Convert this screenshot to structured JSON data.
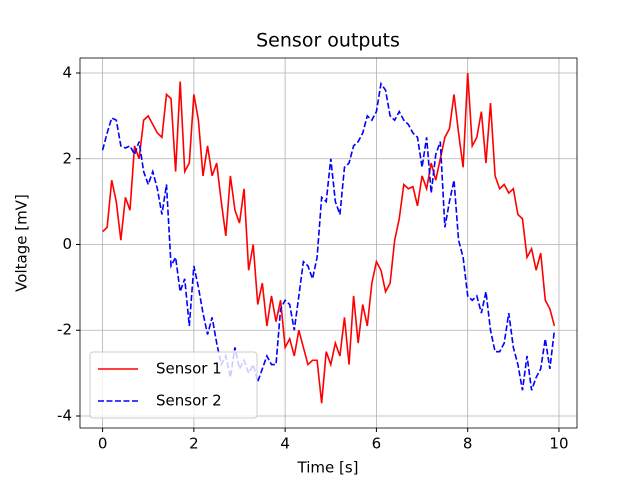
{
  "chart_data": {
    "type": "line",
    "title": "Sensor outputs",
    "xlabel": "Time [s]",
    "ylabel": "Voltage [mV]",
    "x": [
      0,
      0.1,
      0.2,
      0.3,
      0.4,
      0.5,
      0.6,
      0.7,
      0.8,
      0.9,
      1,
      1.1,
      1.2,
      1.3,
      1.4,
      1.5,
      1.6,
      1.7,
      1.8,
      1.9,
      2,
      2.1,
      2.2,
      2.3,
      2.4,
      2.5,
      2.6,
      2.7,
      2.8,
      2.9,
      3,
      3.1,
      3.2,
      3.3,
      3.4,
      3.5,
      3.6,
      3.7,
      3.8,
      3.9,
      4,
      4.1,
      4.2,
      4.3,
      4.4,
      4.5,
      4.6,
      4.7,
      4.8,
      4.9,
      5,
      5.1,
      5.2,
      5.3,
      5.4,
      5.5,
      5.6,
      5.7,
      5.8,
      5.9,
      6,
      6.1,
      6.2,
      6.3,
      6.4,
      6.5,
      6.6,
      6.7,
      6.8,
      6.9,
      7,
      7.1,
      7.2,
      7.3,
      7.4,
      7.5,
      7.6,
      7.7,
      7.8,
      7.9,
      8,
      8.1,
      8.2,
      8.3,
      8.4,
      8.5,
      8.6,
      8.7,
      8.8,
      8.9,
      9,
      9.1,
      9.2,
      9.3,
      9.4,
      9.5,
      9.6,
      9.7,
      9.8,
      9.9
    ],
    "series": [
      {
        "name": "Sensor 1",
        "color": "#ff0000",
        "dash": "solid",
        "values": [
          0.3,
          0.4,
          1.5,
          1.0,
          0.1,
          1.1,
          0.8,
          2.3,
          2.0,
          2.9,
          3.0,
          2.8,
          2.6,
          2.5,
          3.5,
          3.4,
          1.7,
          3.8,
          1.7,
          1.9,
          3.5,
          2.9,
          1.6,
          2.3,
          1.6,
          1.9,
          1.0,
          0.2,
          1.6,
          0.8,
          0.5,
          1.3,
          -0.6,
          0.0,
          -1.4,
          -0.9,
          -1.9,
          -1.2,
          -1.8,
          -1.3,
          -2.4,
          -2.2,
          -2.6,
          -2.0,
          -2.4,
          -2.8,
          -2.7,
          -2.7,
          -3.7,
          -2.5,
          -2.8,
          -2.3,
          -2.6,
          -1.7,
          -2.8,
          -1.2,
          -2.3,
          -1.4,
          -1.9,
          -0.9,
          -0.4,
          -0.6,
          -1.1,
          -0.9,
          0.1,
          0.6,
          1.4,
          1.3,
          1.35,
          0.9,
          1.6,
          1.3,
          1.9,
          1.5,
          2.0,
          2.5,
          2.7,
          3.5,
          2.6,
          1.8,
          4.0,
          2.3,
          2.5,
          3.1,
          1.9,
          3.3,
          1.6,
          1.3,
          1.4,
          1.2,
          1.3,
          0.7,
          0.6,
          -0.3,
          -0.1,
          -0.6,
          -0.2,
          -1.3,
          -1.5,
          -1.9
        ]
      },
      {
        "name": "Sensor 2",
        "color": "#0000ff",
        "dash": "dashed",
        "values": [
          2.2,
          2.6,
          2.95,
          2.9,
          2.3,
          2.25,
          2.3,
          2.1,
          2.4,
          1.7,
          1.4,
          1.7,
          1.3,
          0.7,
          1.4,
          -0.5,
          -0.3,
          -1.1,
          -0.8,
          -1.9,
          -0.5,
          -1.0,
          -1.6,
          -2.1,
          -1.7,
          -2.3,
          -2.8,
          -2.6,
          -3.1,
          -2.4,
          -2.9,
          -2.7,
          -3.0,
          -2.8,
          -3.2,
          -2.9,
          -2.6,
          -2.8,
          -2.8,
          -1.5,
          -1.3,
          -1.4,
          -2.0,
          -1.2,
          -0.4,
          -0.5,
          -0.8,
          -0.3,
          1.1,
          1.0,
          2.0,
          1.0,
          0.7,
          1.8,
          1.9,
          2.3,
          2.4,
          2.6,
          3.0,
          2.9,
          3.1,
          3.75,
          3.6,
          3.0,
          2.9,
          3.1,
          2.9,
          2.8,
          2.6,
          2.5,
          1.8,
          2.5,
          1.2,
          2.1,
          2.4,
          0.4,
          1.0,
          1.5,
          0.1,
          -0.3,
          -1.2,
          -1.3,
          -1.2,
          -1.6,
          -1.1,
          -2.0,
          -2.5,
          -2.5,
          -2.3,
          -1.6,
          -2.4,
          -2.8,
          -3.4,
          -2.6,
          -3.4,
          -3.1,
          -2.9,
          -2.2,
          -2.9,
          -2.0
        ]
      }
    ],
    "xlim": [
      -0.495,
      10.395
    ],
    "ylim": [
      -4.28,
      4.35
    ],
    "xticks": [
      0,
      2,
      4,
      6,
      8,
      10
    ],
    "yticks": [
      -4,
      -2,
      0,
      2,
      4
    ],
    "grid": true,
    "legend": "lower left"
  }
}
